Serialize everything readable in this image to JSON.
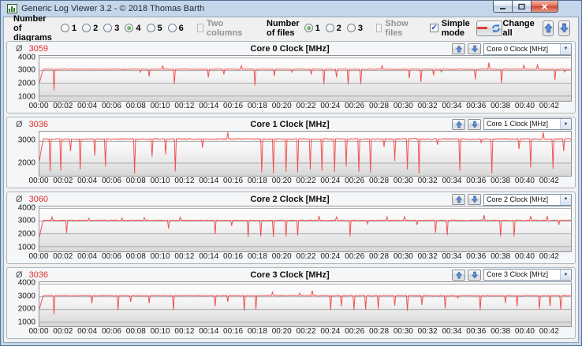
{
  "window": {
    "title": "Generic Log Viewer 3.2 - © 2018 Thomas Barth"
  },
  "icons": {
    "average_symbol": "Ø",
    "check": "✔",
    "dropdown_arrow": "▼",
    "up_arrow": "↑",
    "down_arrow": "↓",
    "minimize": "–",
    "maximize": "□",
    "close": "✕",
    "remove_line": "—",
    "refresh": "⟳"
  },
  "colors": {
    "line_red": "#f15252",
    "average_red": "#e23030",
    "grid": "#a9a9a9",
    "accent_blue": "#5b8fd6"
  },
  "toolbar": {
    "diagrams_label": "Number of diagrams",
    "diagram_options": [
      "1",
      "2",
      "3",
      "4",
      "5",
      "6"
    ],
    "diagrams_selected": "4",
    "two_columns_label": "Two columns",
    "files_label": "Number of files",
    "file_options": [
      "1",
      "2",
      "3"
    ],
    "files_selected": "1",
    "show_files_label": "Show files",
    "simple_mode_label": "Simple mode",
    "simple_mode_checked": true,
    "change_all_label": "Change all"
  },
  "chart_data": [
    {
      "type": "line",
      "title": "Core 0 Clock [MHz]",
      "average": "3059",
      "selector_value": "Core 0 Clock [MHz]",
      "ylim": [
        650,
        4150
      ],
      "yticks": [
        1000,
        2000,
        3000,
        4000
      ],
      "xlim": [
        0,
        43.8
      ],
      "xtick_step_min": 2,
      "xtick_labels": [
        "00:00",
        "00:02",
        "00:04",
        "00:06",
        "00:08",
        "00:10",
        "00:12",
        "00:14",
        "00:16",
        "00:18",
        "00:20",
        "00:22",
        "00:24",
        "00:26",
        "00:28",
        "00:30",
        "00:32",
        "00:34",
        "00:36",
        "00:38",
        "00:40",
        "00:42"
      ],
      "baseline": 3110,
      "start_value": 2050,
      "seed": 11,
      "spikes": [
        [
          1.2,
          1430
        ],
        [
          8.35,
          2870
        ],
        [
          9.0,
          2520
        ],
        [
          10.2,
          3400
        ],
        [
          11.15,
          1950
        ],
        [
          13.9,
          2470
        ],
        [
          15.2,
          2700
        ],
        [
          16.6,
          3380
        ],
        [
          17.75,
          1830
        ],
        [
          19.4,
          2580
        ],
        [
          20.8,
          2880
        ],
        [
          22.4,
          2690
        ],
        [
          23.4,
          1930
        ],
        [
          24.45,
          2470
        ],
        [
          25.45,
          1900
        ],
        [
          26.45,
          1950
        ],
        [
          28.2,
          3420
        ],
        [
          30.45,
          2400
        ],
        [
          31.45,
          2110
        ],
        [
          32.5,
          2620
        ],
        [
          33.1,
          2900
        ],
        [
          35.95,
          2300
        ],
        [
          37.0,
          3640
        ],
        [
          38.05,
          2020
        ],
        [
          39.9,
          3460
        ],
        [
          41.05,
          3500
        ],
        [
          42.45,
          2230
        ],
        [
          43.3,
          2890
        ]
      ]
    },
    {
      "type": "line",
      "title": "Core 1 Clock [MHz]",
      "average": "3036",
      "selector_value": "Core 1 Clock [MHz]",
      "ylim": [
        1400,
        3450
      ],
      "yticks": [
        2000,
        3000
      ],
      "xlim": [
        0,
        43.8
      ],
      "xtick_step_min": 2,
      "xtick_labels": [
        "00:00",
        "00:02",
        "00:04",
        "00:06",
        "00:08",
        "00:10",
        "00:12",
        "00:14",
        "00:16",
        "00:18",
        "00:20",
        "00:22",
        "00:24",
        "00:26",
        "00:28",
        "00:30",
        "00:32",
        "00:34",
        "00:36",
        "00:38",
        "00:40",
        "00:42"
      ],
      "baseline": 3110,
      "start_value": 2100,
      "seed": 22,
      "spikes": [
        [
          0.85,
          1620
        ],
        [
          1.75,
          1660
        ],
        [
          2.55,
          2550
        ],
        [
          3.35,
          1700
        ],
        [
          4.6,
          2350
        ],
        [
          5.45,
          1850
        ],
        [
          7.8,
          1520
        ],
        [
          9.3,
          2300
        ],
        [
          10.4,
          2400
        ],
        [
          11.2,
          1620
        ],
        [
          13.4,
          2700
        ],
        [
          15.5,
          3430
        ],
        [
          18.3,
          1560
        ],
        [
          19.25,
          1520
        ],
        [
          20.3,
          1600
        ],
        [
          21.25,
          1560
        ],
        [
          22.3,
          1700
        ],
        [
          23.25,
          1650
        ],
        [
          24.3,
          1600
        ],
        [
          25.25,
          1850
        ],
        [
          26.3,
          1600
        ],
        [
          27.25,
          1560
        ],
        [
          28.4,
          2750
        ],
        [
          29.3,
          2100
        ],
        [
          30.3,
          1700
        ],
        [
          31.3,
          1520
        ],
        [
          32.8,
          2850
        ],
        [
          34.6,
          1650
        ],
        [
          36.4,
          2950
        ],
        [
          37.3,
          1520
        ],
        [
          39.5,
          2650
        ],
        [
          40.5,
          1800
        ],
        [
          41.5,
          3420
        ],
        [
          42.3,
          1750
        ],
        [
          43.2,
          2550
        ]
      ]
    },
    {
      "type": "line",
      "title": "Core 2 Clock [MHz]",
      "average": "3060",
      "selector_value": "Core 2 Clock [MHz]",
      "ylim": [
        650,
        4150
      ],
      "yticks": [
        1000,
        2000,
        3000,
        4000
      ],
      "xlim": [
        0,
        43.8
      ],
      "xtick_step_min": 2,
      "xtick_labels": [
        "00:00",
        "00:02",
        "00:04",
        "00:06",
        "00:08",
        "00:10",
        "00:12",
        "00:14",
        "00:16",
        "00:18",
        "00:20",
        "00:22",
        "00:24",
        "00:26",
        "00:28",
        "00:30",
        "00:32",
        "00:34",
        "00:36",
        "00:38",
        "00:40",
        "00:42"
      ],
      "baseline": 3060,
      "start_value": 1750,
      "seed": 33,
      "spikes": [
        [
          1.0,
          3330
        ],
        [
          2.25,
          2060
        ],
        [
          4.1,
          3220
        ],
        [
          6.8,
          3240
        ],
        [
          8.6,
          3270
        ],
        [
          10.6,
          2420
        ],
        [
          11.6,
          3310
        ],
        [
          14.5,
          1980
        ],
        [
          15.8,
          2620
        ],
        [
          17.2,
          1760
        ],
        [
          18.25,
          1800
        ],
        [
          19.3,
          1760
        ],
        [
          20.3,
          1790
        ],
        [
          21.3,
          1860
        ],
        [
          23.0,
          3400
        ],
        [
          24.5,
          3370
        ],
        [
          25.6,
          1800
        ],
        [
          27.0,
          2780
        ],
        [
          28.6,
          3340
        ],
        [
          30.1,
          3370
        ],
        [
          31.1,
          2700
        ],
        [
          32.6,
          2080
        ],
        [
          33.6,
          1900
        ],
        [
          36.6,
          3490
        ],
        [
          38.0,
          1800
        ],
        [
          39.1,
          1810
        ],
        [
          40.5,
          3390
        ],
        [
          41.8,
          3410
        ],
        [
          42.8,
          2700
        ]
      ]
    },
    {
      "type": "line",
      "title": "Core 3 Clock [MHz]",
      "average": "3036",
      "selector_value": "Core 3 Clock [MHz]",
      "ylim": [
        650,
        4150
      ],
      "yticks": [
        1000,
        2000,
        3000,
        4000
      ],
      "xlim": [
        0,
        43.8
      ],
      "xtick_step_min": 2,
      "xtick_labels": [
        "00:00",
        "00:02",
        "00:04",
        "00:06",
        "00:08",
        "00:10",
        "00:12",
        "00:14",
        "00:16",
        "00:18",
        "00:20",
        "00:22",
        "00:24",
        "00:26",
        "00:28",
        "00:30",
        "00:32",
        "00:34",
        "00:36",
        "00:38",
        "00:40",
        "00:42"
      ],
      "baseline": 3100,
      "start_value": 2050,
      "seed": 44,
      "spikes": [
        [
          1.2,
          1630
        ],
        [
          4.35,
          2480
        ],
        [
          6.5,
          1950
        ],
        [
          7.5,
          2600
        ],
        [
          9.0,
          2500
        ],
        [
          11.0,
          1950
        ],
        [
          14.5,
          2250
        ],
        [
          15.5,
          2600
        ],
        [
          16.9,
          1900
        ],
        [
          17.8,
          2000
        ],
        [
          19.2,
          3360
        ],
        [
          21.4,
          3290
        ],
        [
          22.5,
          3500
        ],
        [
          24.0,
          1950
        ],
        [
          24.9,
          2250
        ],
        [
          25.9,
          1950
        ],
        [
          26.9,
          2000
        ],
        [
          27.9,
          2050
        ],
        [
          29.3,
          2300
        ],
        [
          30.35,
          1900
        ],
        [
          31.5,
          2350
        ],
        [
          33.4,
          2100
        ],
        [
          34.5,
          2900
        ],
        [
          36.3,
          1950
        ],
        [
          38.4,
          2500
        ],
        [
          39.35,
          2250
        ],
        [
          41.2,
          2050
        ],
        [
          42.1,
          2250
        ],
        [
          42.95,
          2000
        ]
      ]
    }
  ]
}
